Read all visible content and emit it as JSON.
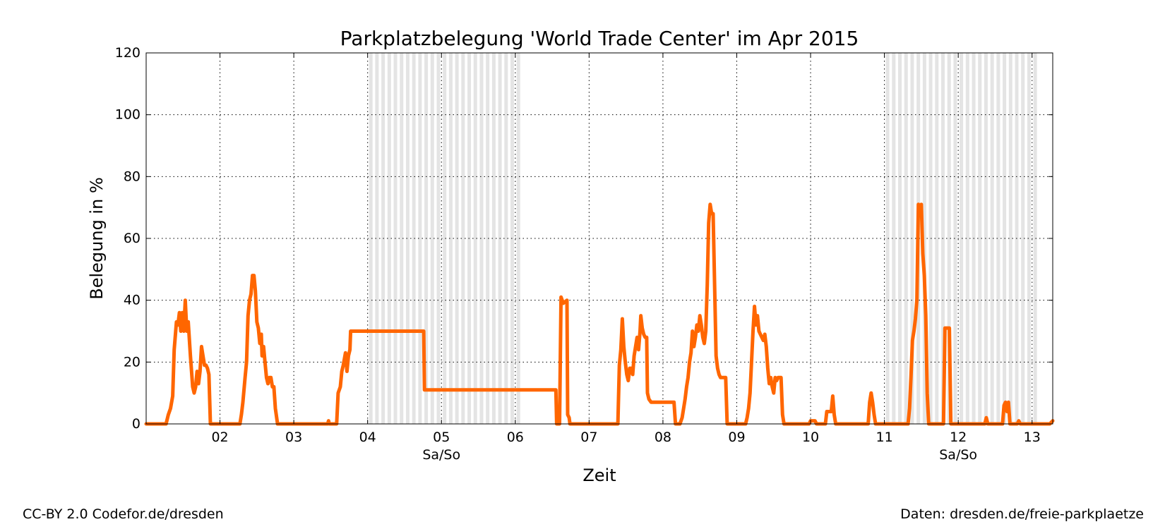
{
  "chart_data": {
    "type": "line",
    "title": "Parkplatzbelegung 'World Trade Center' im Apr 2015",
    "xlabel": "Zeit",
    "ylabel": "Belegung in %",
    "ylim": [
      0,
      120
    ],
    "xlim": [
      1.0,
      13.28
    ],
    "yticks": [
      0,
      20,
      40,
      60,
      80,
      100,
      120
    ],
    "xticks": [
      {
        "value": 2,
        "label": "02"
      },
      {
        "value": 3,
        "label": "03"
      },
      {
        "value": 4,
        "label": "04"
      },
      {
        "value": 5,
        "label": "05"
      },
      {
        "value": 6,
        "label": "06"
      },
      {
        "value": 7,
        "label": "07"
      },
      {
        "value": 8,
        "label": "08"
      },
      {
        "value": 9,
        "label": "09"
      },
      {
        "value": 10,
        "label": "10"
      },
      {
        "value": 11,
        "label": "11"
      },
      {
        "value": 12,
        "label": "12"
      },
      {
        "value": 13,
        "label": "13"
      }
    ],
    "weekend_label": "Sa/So",
    "weekends": [
      [
        4.0,
        6.0
      ],
      [
        11.0,
        13.0
      ]
    ],
    "grid": true,
    "line_color": "#ff6600",
    "series": [
      {
        "points": [
          [
            1.0,
            0
          ],
          [
            1.27,
            0
          ],
          [
            1.3,
            3
          ],
          [
            1.33,
            5
          ],
          [
            1.36,
            9
          ],
          [
            1.38,
            24
          ],
          [
            1.41,
            33
          ],
          [
            1.43,
            32
          ],
          [
            1.45,
            36
          ],
          [
            1.47,
            30
          ],
          [
            1.49,
            36
          ],
          [
            1.51,
            30
          ],
          [
            1.53,
            40
          ],
          [
            1.55,
            30
          ],
          [
            1.57,
            33
          ],
          [
            1.6,
            22
          ],
          [
            1.63,
            12
          ],
          [
            1.65,
            10
          ],
          [
            1.67,
            12
          ],
          [
            1.69,
            17
          ],
          [
            1.71,
            13
          ],
          [
            1.73,
            17
          ],
          [
            1.75,
            25
          ],
          [
            1.77,
            22
          ],
          [
            1.79,
            19
          ],
          [
            1.81,
            19
          ],
          [
            1.83,
            18
          ],
          [
            1.85,
            16
          ],
          [
            1.87,
            0
          ],
          [
            2.27,
            0
          ],
          [
            2.29,
            3
          ],
          [
            2.31,
            7
          ],
          [
            2.34,
            15
          ],
          [
            2.36,
            20
          ],
          [
            2.38,
            35
          ],
          [
            2.4,
            40
          ],
          [
            2.42,
            42
          ],
          [
            2.44,
            48
          ],
          [
            2.46,
            48
          ],
          [
            2.48,
            43
          ],
          [
            2.5,
            33
          ],
          [
            2.52,
            31
          ],
          [
            2.54,
            26
          ],
          [
            2.56,
            29
          ],
          [
            2.57,
            22
          ],
          [
            2.59,
            25
          ],
          [
            2.61,
            20
          ],
          [
            2.63,
            15
          ],
          [
            2.65,
            13
          ],
          [
            2.67,
            15
          ],
          [
            2.69,
            15
          ],
          [
            2.71,
            12
          ],
          [
            2.73,
            12
          ],
          [
            2.75,
            5
          ],
          [
            2.78,
            0
          ],
          [
            3.46,
            0
          ],
          [
            3.47,
            1
          ],
          [
            3.48,
            0
          ],
          [
            3.58,
            0
          ],
          [
            3.6,
            10
          ],
          [
            3.63,
            12
          ],
          [
            3.65,
            17
          ],
          [
            3.67,
            19
          ],
          [
            3.7,
            23
          ],
          [
            3.72,
            17
          ],
          [
            3.74,
            22
          ],
          [
            3.76,
            24
          ],
          [
            3.77,
            30
          ],
          [
            4.4,
            30
          ],
          [
            4.76,
            30
          ],
          [
            4.77,
            11
          ],
          [
            6.55,
            11
          ],
          [
            6.56,
            0
          ],
          [
            6.6,
            0
          ],
          [
            6.62,
            41
          ],
          [
            6.65,
            39
          ],
          [
            6.7,
            40
          ],
          [
            6.71,
            3
          ],
          [
            6.73,
            2
          ],
          [
            6.74,
            0
          ],
          [
            7.39,
            0
          ],
          [
            7.41,
            19
          ],
          [
            7.43,
            24
          ],
          [
            7.45,
            34
          ],
          [
            7.47,
            25
          ],
          [
            7.49,
            20
          ],
          [
            7.51,
            16
          ],
          [
            7.53,
            14
          ],
          [
            7.55,
            18
          ],
          [
            7.57,
            18
          ],
          [
            7.59,
            16
          ],
          [
            7.61,
            22
          ],
          [
            7.63,
            25
          ],
          [
            7.65,
            28
          ],
          [
            7.67,
            24
          ],
          [
            7.69,
            30
          ],
          [
            7.7,
            35
          ],
          [
            7.72,
            31
          ],
          [
            7.74,
            29
          ],
          [
            7.76,
            28
          ],
          [
            7.78,
            28
          ],
          [
            7.79,
            10
          ],
          [
            7.81,
            8
          ],
          [
            7.84,
            7
          ],
          [
            8.15,
            7
          ],
          [
            8.17,
            0
          ],
          [
            8.23,
            0
          ],
          [
            8.26,
            2
          ],
          [
            8.28,
            5
          ],
          [
            8.3,
            8
          ],
          [
            8.32,
            12
          ],
          [
            8.34,
            15
          ],
          [
            8.36,
            20
          ],
          [
            8.38,
            23
          ],
          [
            8.4,
            30
          ],
          [
            8.42,
            25
          ],
          [
            8.44,
            28
          ],
          [
            8.46,
            32
          ],
          [
            8.48,
            30
          ],
          [
            8.5,
            35
          ],
          [
            8.52,
            32
          ],
          [
            8.54,
            28
          ],
          [
            8.56,
            26
          ],
          [
            8.58,
            30
          ],
          [
            8.6,
            45
          ],
          [
            8.62,
            65
          ],
          [
            8.64,
            71
          ],
          [
            8.66,
            68
          ],
          [
            8.68,
            68
          ],
          [
            8.7,
            45
          ],
          [
            8.72,
            22
          ],
          [
            8.74,
            18
          ],
          [
            8.76,
            16
          ],
          [
            8.78,
            15
          ],
          [
            8.85,
            15
          ],
          [
            8.87,
            0
          ],
          [
            9.12,
            0
          ],
          [
            9.14,
            2
          ],
          [
            9.16,
            5
          ],
          [
            9.18,
            10
          ],
          [
            9.2,
            20
          ],
          [
            9.22,
            30
          ],
          [
            9.24,
            38
          ],
          [
            9.26,
            32
          ],
          [
            9.28,
            35
          ],
          [
            9.3,
            30
          ],
          [
            9.32,
            29
          ],
          [
            9.34,
            28
          ],
          [
            9.36,
            27
          ],
          [
            9.38,
            29
          ],
          [
            9.4,
            25
          ],
          [
            9.42,
            18
          ],
          [
            9.44,
            13
          ],
          [
            9.46,
            15
          ],
          [
            9.48,
            12
          ],
          [
            9.5,
            10
          ],
          [
            9.52,
            15
          ],
          [
            9.54,
            14
          ],
          [
            9.56,
            15
          ],
          [
            9.6,
            15
          ],
          [
            9.62,
            3
          ],
          [
            9.64,
            0
          ],
          [
            9.98,
            0
          ],
          [
            10.0,
            1
          ],
          [
            10.06,
            1
          ],
          [
            10.08,
            0
          ],
          [
            10.2,
            0
          ],
          [
            10.22,
            4
          ],
          [
            10.28,
            4
          ],
          [
            10.3,
            9
          ],
          [
            10.32,
            3
          ],
          [
            10.34,
            0
          ],
          [
            10.78,
            0
          ],
          [
            10.8,
            7
          ],
          [
            10.82,
            10
          ],
          [
            10.84,
            7
          ],
          [
            10.86,
            3
          ],
          [
            10.88,
            0
          ],
          [
            11.32,
            0
          ],
          [
            11.34,
            5
          ],
          [
            11.36,
            15
          ],
          [
            11.38,
            27
          ],
          [
            11.4,
            30
          ],
          [
            11.42,
            34
          ],
          [
            11.44,
            40
          ],
          [
            11.46,
            71
          ],
          [
            11.48,
            68
          ],
          [
            11.5,
            71
          ],
          [
            11.52,
            55
          ],
          [
            11.54,
            48
          ],
          [
            11.56,
            35
          ],
          [
            11.58,
            10
          ],
          [
            11.6,
            0
          ],
          [
            11.8,
            0
          ],
          [
            11.82,
            31
          ],
          [
            11.88,
            31
          ],
          [
            11.9,
            0
          ],
          [
            12.36,
            0
          ],
          [
            12.38,
            2
          ],
          [
            12.4,
            0
          ],
          [
            12.6,
            0
          ],
          [
            12.62,
            6
          ],
          [
            12.64,
            7
          ],
          [
            12.66,
            4
          ],
          [
            12.68,
            7
          ],
          [
            12.7,
            0
          ],
          [
            12.8,
            0
          ],
          [
            12.82,
            1
          ],
          [
            12.84,
            0
          ],
          [
            13.24,
            0
          ],
          [
            13.28,
            1
          ]
        ]
      }
    ]
  },
  "footer": {
    "license": "CC-BY 2.0 Codefor.de/dresden",
    "source": "Daten: dresden.de/freie-parkplaetze"
  }
}
